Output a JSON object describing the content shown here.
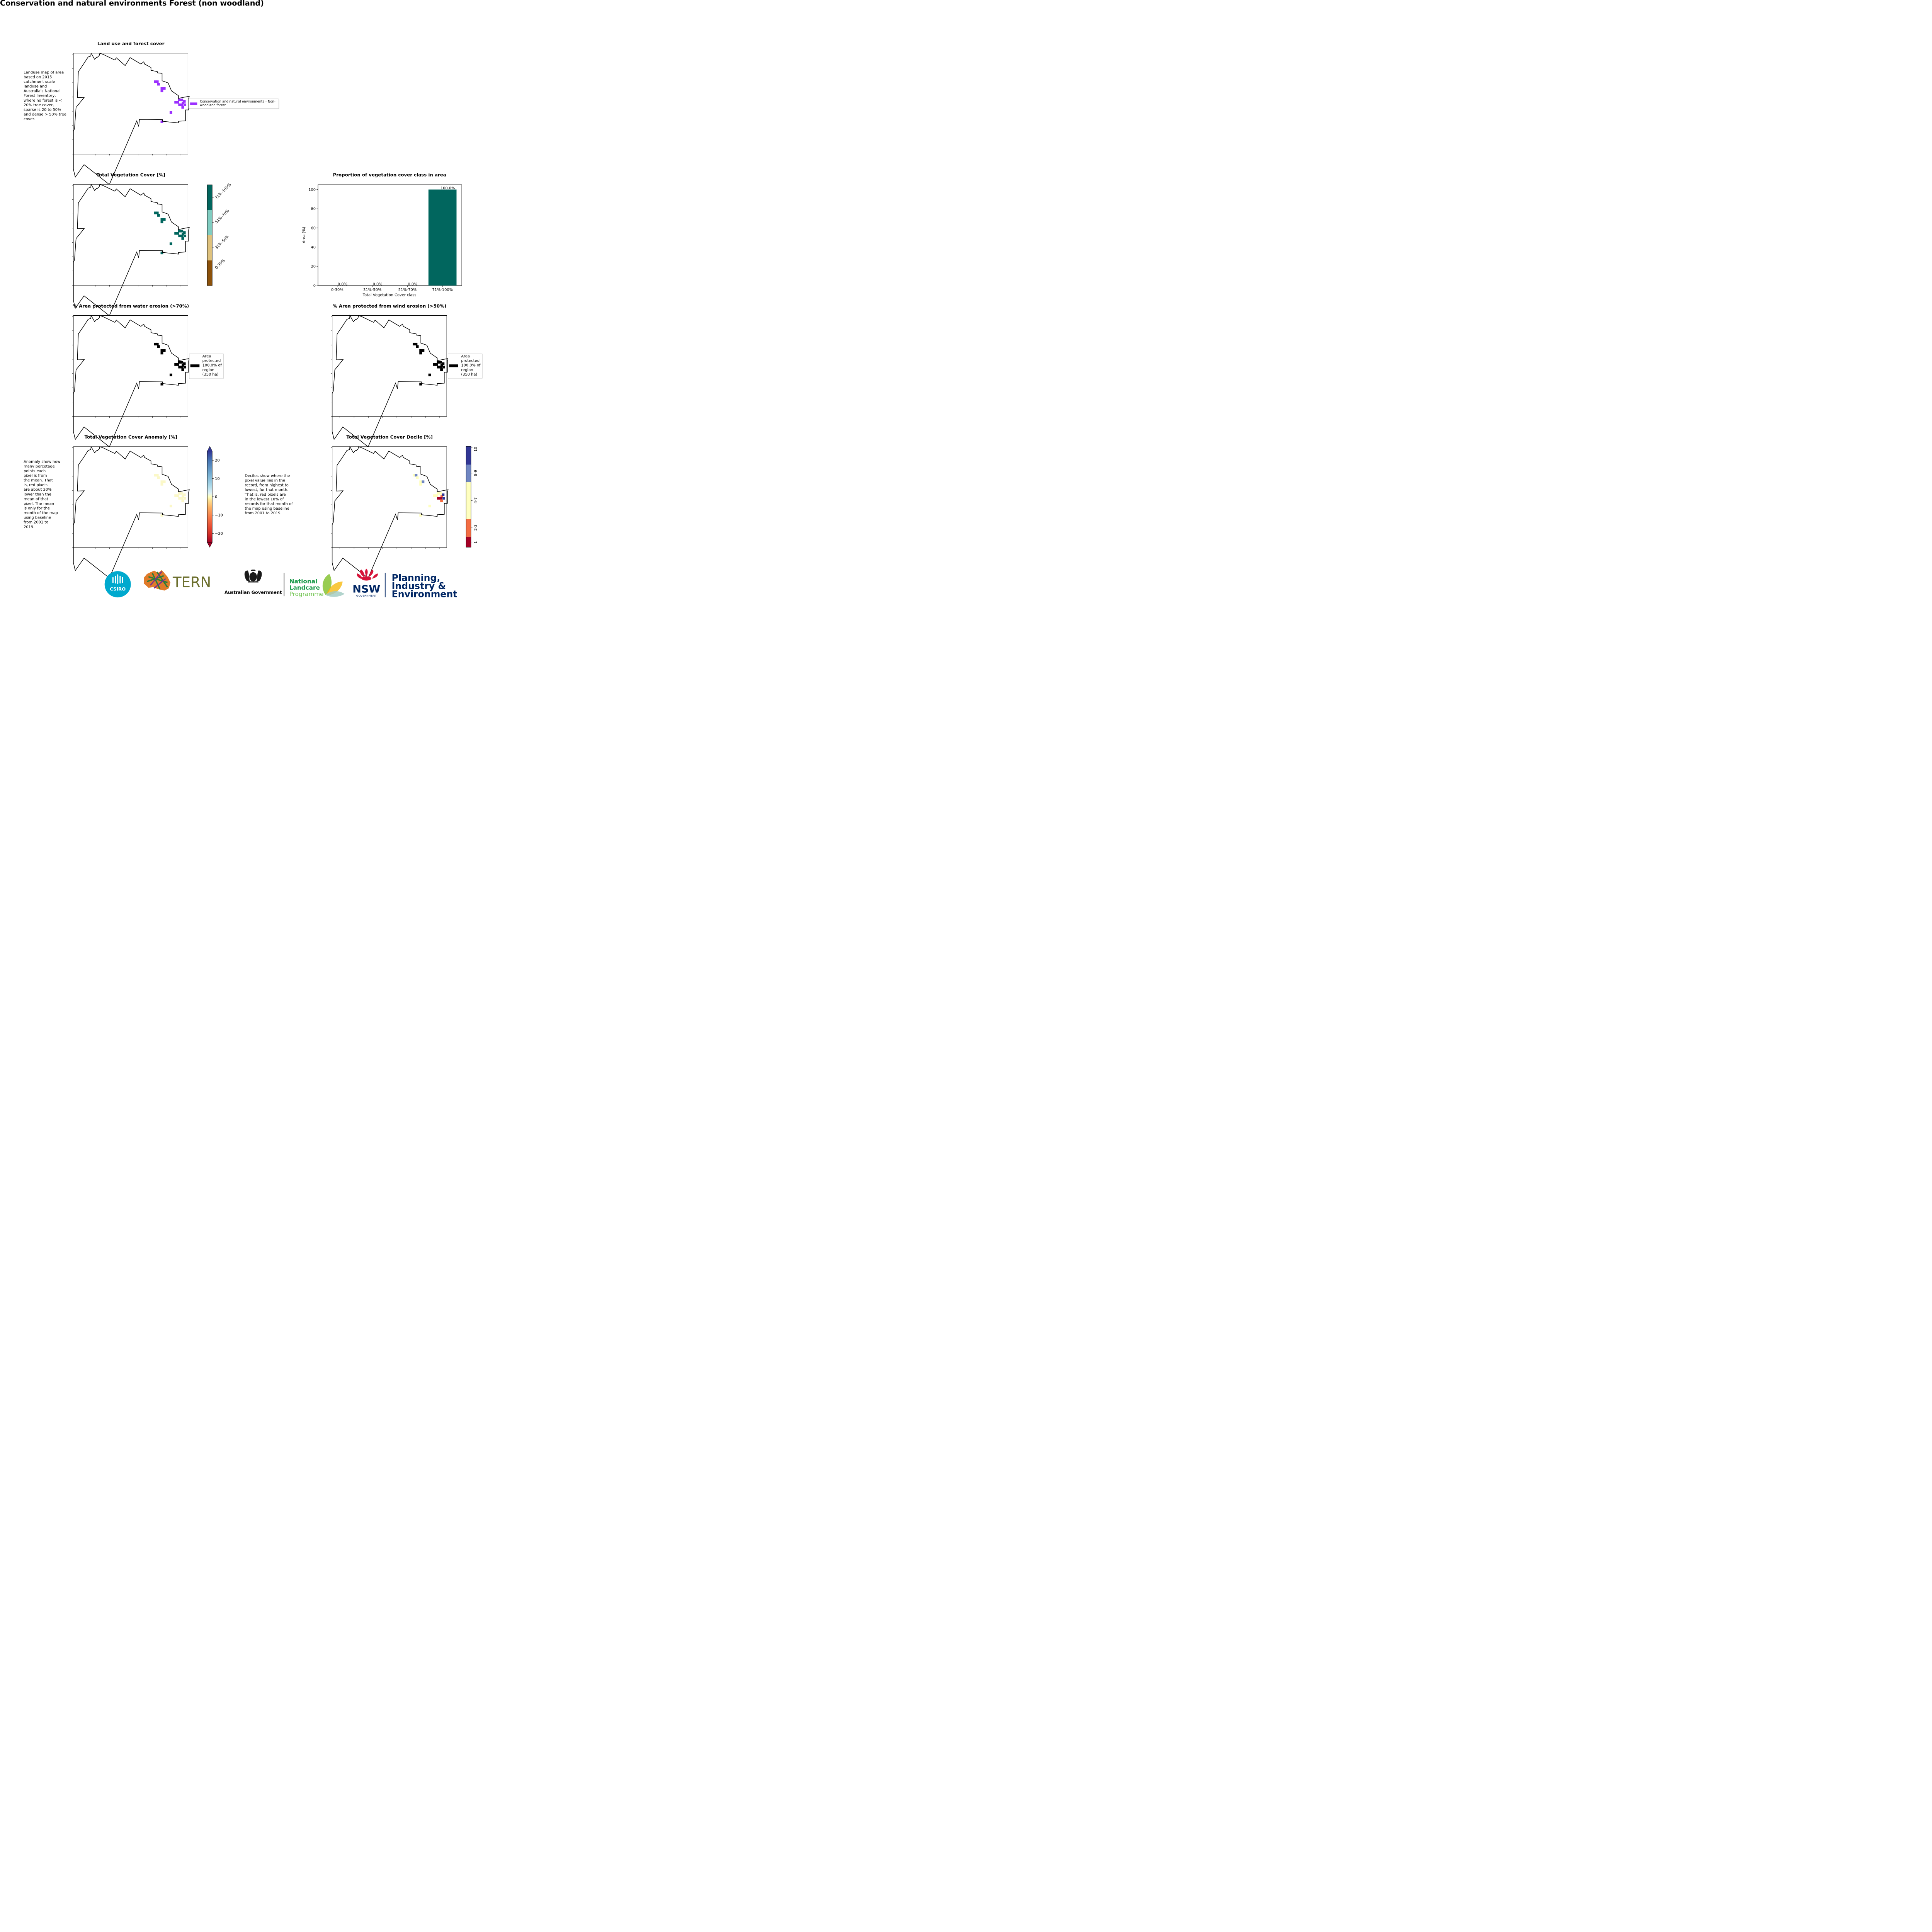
{
  "page": {
    "title": "Conservation and natural environments Forest (non woodland)"
  },
  "notes": {
    "landuse": [
      "Landuse map of area",
      "based on 2015",
      "catchment scale",
      "landuse and",
      "Australia's National",
      "Forest Inventory,",
      "where no forest is <",
      "20% tree cover,",
      "sparse is 20 to 50%",
      "and dense > 50% tree",
      "cover."
    ],
    "anomaly": [
      "Anomaly show how",
      "many percetage",
      "points each",
      "pixel is from",
      "the mean. That",
      "is, red pixels",
      "are about 20%",
      "lower than the",
      "mean of that",
      "pixel. The mean",
      "is only for the",
      "month of the map",
      "using baseline",
      "from 2001 to",
      "2019."
    ],
    "decile": [
      "Deciles show where the",
      "pixel value lies in the",
      "record, from highest to",
      "lowest, for that month.",
      "That is, red pixels are",
      "in the lowest 10% of",
      "records for that month of",
      "the map using baseline",
      "from 2001 to 2019."
    ]
  },
  "maps": {
    "landuse": {
      "title": "Land use and forest cover",
      "legend": [
        "Conservation and natural environments – Non-",
        "woodland forest"
      ],
      "color": "#9b30ff"
    },
    "tvc": {
      "title": "Total Vegetation Cover [%]",
      "color": "#01665e",
      "colorbar": {
        "labels": [
          "0-30%",
          "31%-50%",
          "51%-70%",
          "71%-100%"
        ],
        "colors": [
          "#8c510a",
          "#dfc27d",
          "#80cdc1",
          "#01665e"
        ]
      }
    },
    "water": {
      "title": "% Area protected from water erosion (>70%)",
      "legend": [
        "Area",
        "protected",
        "100.0% of",
        "region",
        "(350 ha)"
      ]
    },
    "wind": {
      "title": "% Area protected from wind erosion (>50%)",
      "legend": [
        "Area",
        "protected",
        "100.0% of",
        "region",
        "(350 ha)"
      ]
    },
    "anomaly": {
      "title": "Total Vegetation Cover Anomaly [%]",
      "colorbar": {
        "ticks": [
          "20",
          "10",
          "0",
          "−10",
          "−20"
        ]
      }
    },
    "decile": {
      "title": "Total Vegetation Cover Decile [%]",
      "colorbar": {
        "labels": [
          "10",
          "8-9",
          "4-7",
          "2-3",
          "1"
        ],
        "colors": [
          "#313695",
          "#6f86c2",
          "#ffffbf",
          "#f46d43",
          "#a50026"
        ]
      }
    }
  },
  "chart_data": {
    "type": "bar",
    "title": "Proportion of vegetation cover class in area",
    "categories": [
      "0-30%",
      "31%-50%",
      "51%-70%",
      "71%-100%"
    ],
    "values": [
      0.0,
      0.0,
      0.0,
      100.0
    ],
    "value_labels": [
      "0.0%",
      "0.0%",
      "0.0%",
      "100.0%"
    ],
    "colors": [
      "#8c510a",
      "#dfc27d",
      "#80cdc1",
      "#01665e"
    ],
    "xlabel": "Total Vegetation Cover class",
    "ylabel": "Area (%)",
    "ylim": [
      0,
      105
    ],
    "yticks": [
      0,
      20,
      40,
      60,
      80,
      100
    ]
  },
  "logos": {
    "csiro": "CSIRO",
    "tern": "TERN",
    "ausgov": "Australian Government",
    "landcare": [
      "National",
      "Landcare",
      "Programme"
    ],
    "nsw": [
      "NSW",
      "GOVERNMENT"
    ],
    "pie": [
      "Planning,",
      "Industry &",
      "Environment"
    ]
  },
  "colors": {
    "purple": "#9b30ff",
    "teal": "#01665e",
    "black": "#000000",
    "navy": "#002664",
    "landcare_green": "#1a9a4a",
    "tern_olive": "#6b6e2c",
    "nsw_red": "#d7153a"
  }
}
